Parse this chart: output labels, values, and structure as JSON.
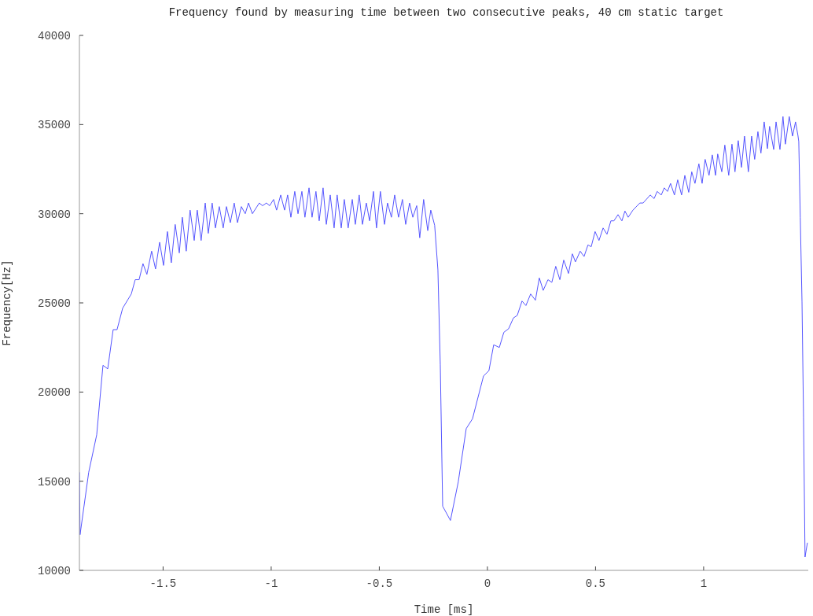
{
  "chart_data": {
    "type": "line",
    "title": "Frequency found by measuring time between two consecutive peaks, 40 cm static target",
    "xlabel": "Time [ms]",
    "ylabel": "Frequency[Hz]",
    "xlim": [
      -1.887,
      1.484
    ],
    "ylim": [
      10000,
      40000
    ],
    "xticks": [
      -1.5,
      -1,
      -0.5,
      0,
      0.5,
      1
    ],
    "yticks": [
      10000,
      15000,
      20000,
      25000,
      30000,
      35000,
      40000
    ],
    "grid": false,
    "legend": false,
    "marker": "none",
    "line_style": "solid",
    "x": [
      -1.887,
      -1.884,
      -1.844,
      -1.807,
      -1.778,
      -1.756,
      -1.731,
      -1.713,
      -1.687,
      -1.647,
      -1.629,
      -1.611,
      -1.593,
      -1.575,
      -1.553,
      -1.535,
      -1.516,
      -1.498,
      -1.48,
      -1.462,
      -1.444,
      -1.425,
      -1.411,
      -1.393,
      -1.375,
      -1.356,
      -1.342,
      -1.324,
      -1.305,
      -1.291,
      -1.273,
      -1.258,
      -1.24,
      -1.222,
      -1.207,
      -1.189,
      -1.171,
      -1.156,
      -1.138,
      -1.12,
      -1.105,
      -1.087,
      -1.055,
      -1.04,
      -1.022,
      -1.007,
      -0.989,
      -0.975,
      -0.956,
      -0.938,
      -0.924,
      -0.909,
      -0.891,
      -0.876,
      -0.858,
      -0.844,
      -0.825,
      -0.811,
      -0.793,
      -0.778,
      -0.76,
      -0.745,
      -0.727,
      -0.709,
      -0.695,
      -0.676,
      -0.662,
      -0.644,
      -0.625,
      -0.611,
      -0.593,
      -0.578,
      -0.56,
      -0.545,
      -0.527,
      -0.513,
      -0.495,
      -0.476,
      -0.462,
      -0.444,
      -0.429,
      -0.411,
      -0.393,
      -0.378,
      -0.36,
      -0.345,
      -0.327,
      -0.313,
      -0.295,
      -0.276,
      -0.262,
      -0.244,
      -0.229,
      -0.218,
      -0.207,
      -0.171,
      -0.135,
      -0.098,
      -0.069,
      -0.018,
      0.007,
      0.029,
      0.055,
      0.076,
      0.098,
      0.12,
      0.138,
      0.16,
      0.178,
      0.2,
      0.222,
      0.24,
      0.258,
      0.28,
      0.298,
      0.316,
      0.335,
      0.353,
      0.375,
      0.393,
      0.407,
      0.429,
      0.447,
      0.465,
      0.48,
      0.498,
      0.516,
      0.535,
      0.553,
      0.571,
      0.585,
      0.604,
      0.622,
      0.636,
      0.651,
      0.673,
      0.705,
      0.72,
      0.753,
      0.771,
      0.785,
      0.804,
      0.818,
      0.833,
      0.847,
      0.865,
      0.88,
      0.898,
      0.913,
      0.931,
      0.945,
      0.96,
      0.978,
      0.993,
      1.007,
      1.025,
      1.04,
      1.055,
      1.065,
      1.084,
      1.098,
      1.116,
      1.131,
      1.145,
      1.16,
      1.175,
      1.189,
      1.207,
      1.222,
      1.236,
      1.251,
      1.265,
      1.28,
      1.295,
      1.305,
      1.324,
      1.335,
      1.353,
      1.367,
      1.378,
      1.396,
      1.411,
      1.425,
      1.436,
      1.44,
      1.447,
      1.455,
      1.462,
      1.469,
      1.48
    ],
    "series": [
      {
        "color": "#5555ff",
        "values": [
          15500,
          12000,
          15500,
          17600,
          21500,
          21300,
          23500,
          23500,
          24700,
          25500,
          26300,
          26300,
          27200,
          26600,
          27900,
          26900,
          28400,
          27100,
          29000,
          27250,
          29400,
          27800,
          29800,
          27900,
          30200,
          28500,
          30200,
          28500,
          30600,
          28900,
          30600,
          29200,
          30400,
          29200,
          30400,
          29500,
          30600,
          29500,
          30400,
          30000,
          30600,
          30000,
          30600,
          30450,
          30600,
          30450,
          30800,
          30200,
          31050,
          30200,
          31050,
          29800,
          31250,
          30000,
          31250,
          29800,
          31450,
          29800,
          31250,
          29600,
          31450,
          29400,
          31050,
          29200,
          31050,
          29200,
          30800,
          29200,
          30800,
          29400,
          31050,
          29400,
          30600,
          29600,
          31250,
          29200,
          31250,
          29400,
          30600,
          29800,
          31050,
          29800,
          30800,
          29400,
          30600,
          29800,
          30450,
          28650,
          30800,
          29050,
          30200,
          29350,
          26850,
          21550,
          13600,
          12800,
          14950,
          17950,
          18500,
          20900,
          21200,
          22650,
          22500,
          23350,
          23550,
          24150,
          24300,
          25100,
          24850,
          25500,
          25150,
          26400,
          25700,
          26300,
          26150,
          27050,
          26300,
          27400,
          26650,
          27750,
          27300,
          27900,
          27600,
          28250,
          28150,
          29000,
          28500,
          29200,
          28850,
          29600,
          29600,
          29950,
          29600,
          30150,
          29800,
          30200,
          30600,
          30600,
          31050,
          30850,
          31250,
          31050,
          31450,
          31250,
          31700,
          31050,
          31900,
          31050,
          32150,
          31200,
          32350,
          31700,
          32800,
          31700,
          33050,
          32150,
          33300,
          32150,
          33350,
          32350,
          33850,
          32150,
          33900,
          32350,
          34100,
          32600,
          34350,
          32350,
          34350,
          33050,
          34600,
          33400,
          35150,
          33650,
          34900,
          33600,
          35150,
          33600,
          35450,
          33900,
          35450,
          34350,
          35150,
          34400,
          34050,
          29800,
          25050,
          18600,
          10750,
          11550
        ]
      }
    ]
  }
}
